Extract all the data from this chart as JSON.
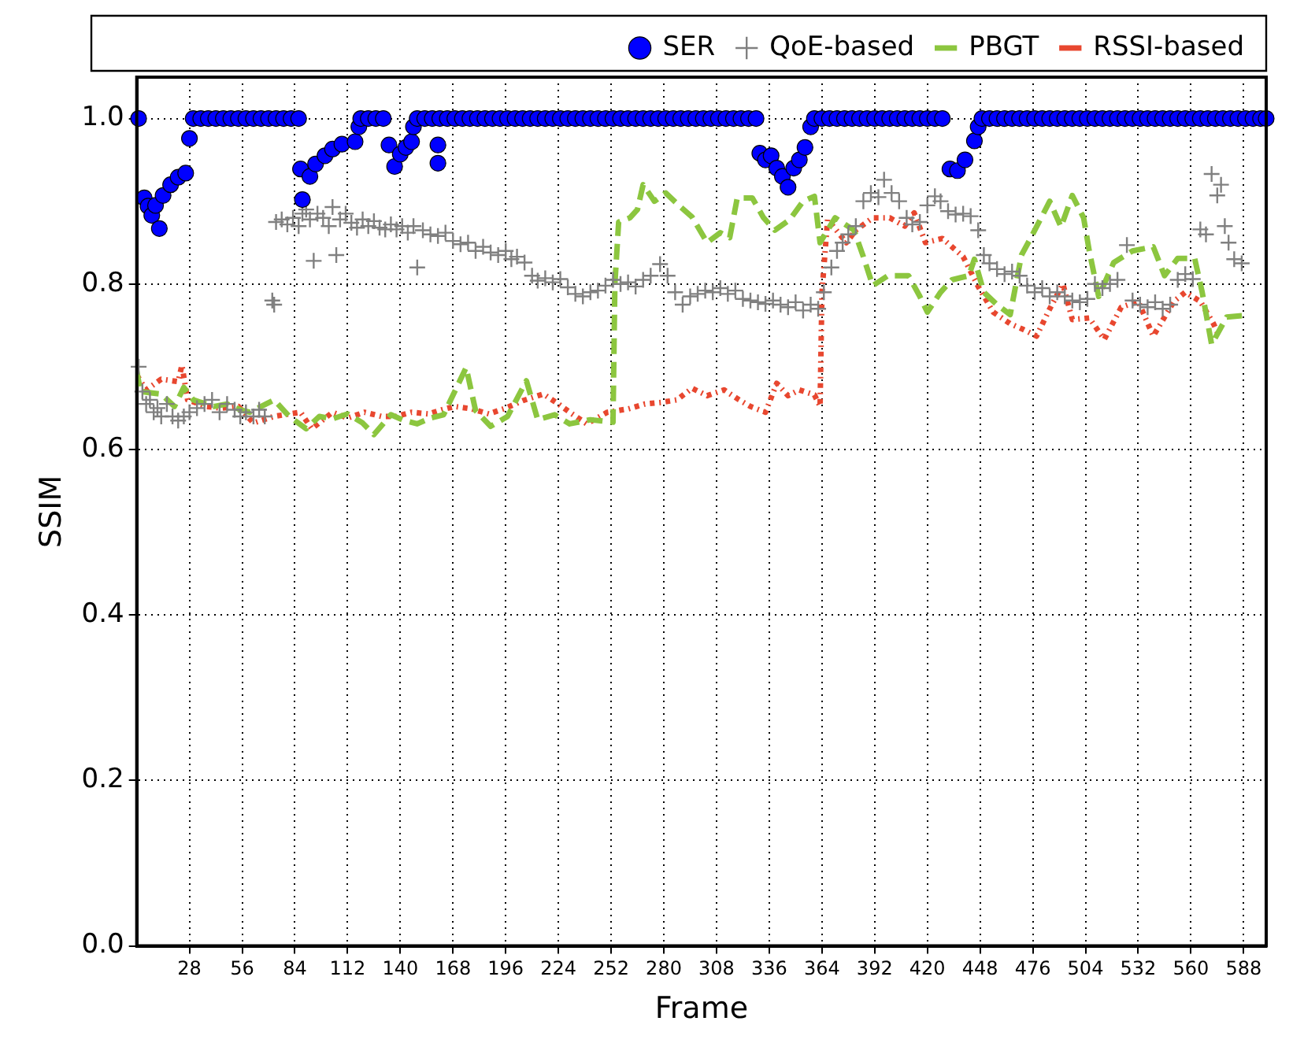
{
  "chart_data": {
    "type": "scatter",
    "xlabel": "Frame",
    "ylabel": "SSIM",
    "xlim": [
      0,
      600
    ],
    "ylim": [
      0,
      1.05
    ],
    "xticks": [
      28,
      56,
      84,
      112,
      140,
      168,
      196,
      224,
      252,
      280,
      308,
      336,
      364,
      392,
      420,
      448,
      476,
      504,
      532,
      560,
      588
    ],
    "yticks": [
      {
        "value": 0,
        "label": "0.0"
      },
      0.2,
      0.4,
      0.6,
      0.8,
      {
        "value": 1,
        "label": "1.0"
      }
    ],
    "grid": true,
    "legend": "top",
    "series": [
      {
        "name": "SER",
        "type": "scatter",
        "marker": "circle",
        "color": "#0000ff",
        "x": [
          1,
          4,
          6,
          8,
          10,
          12,
          14,
          18,
          22,
          26,
          28,
          30,
          34,
          38,
          42,
          46,
          50,
          54,
          58,
          62,
          66,
          70,
          74,
          78,
          82,
          86,
          87,
          88,
          92,
          95,
          100,
          104,
          109,
          116,
          118,
          119,
          123,
          127,
          131,
          134,
          137,
          140,
          143,
          146,
          147,
          149,
          153,
          157,
          160,
          160,
          161,
          165,
          169,
          173,
          177,
          181,
          185,
          189,
          193,
          197,
          201,
          205,
          209,
          213,
          217,
          221,
          225,
          229,
          233,
          237,
          241,
          245,
          249,
          253,
          257,
          261,
          265,
          269,
          273,
          277,
          281,
          285,
          289,
          293,
          297,
          301,
          305,
          309,
          313,
          317,
          321,
          325,
          329,
          331,
          334,
          337,
          340,
          343,
          346,
          349,
          352,
          355,
          358,
          360,
          364,
          368,
          372,
          376,
          380,
          384,
          388,
          392,
          396,
          400,
          404,
          408,
          412,
          416,
          420,
          424,
          428,
          432,
          436,
          440,
          445,
          447,
          449,
          453,
          457,
          461,
          465,
          469,
          473,
          477,
          481,
          485,
          489,
          493,
          497,
          501,
          505,
          509,
          513,
          517,
          521,
          525,
          529,
          533,
          537,
          541,
          545,
          549,
          553,
          557,
          561,
          565,
          569,
          573,
          577,
          581,
          585,
          589,
          593,
          597,
          600
        ],
        "values": [
          1,
          0.904,
          0.894,
          0.883,
          0.895,
          0.867,
          0.907,
          0.92,
          0.929,
          0.934,
          0.976,
          1,
          1,
          1,
          1,
          1,
          1,
          1,
          1,
          1,
          1,
          1,
          1,
          1,
          1,
          1,
          0.939,
          0.902,
          0.93,
          0.945,
          0.955,
          0.963,
          0.969,
          0.972,
          0.99,
          1,
          1,
          1,
          1,
          0.968,
          0.942,
          0.957,
          0.965,
          0.972,
          0.99,
          1,
          1,
          1,
          0.968,
          0.946,
          1,
          1,
          1,
          1,
          1,
          1,
          1,
          1,
          1,
          1,
          1,
          1,
          1,
          1,
          1,
          1,
          1,
          1,
          1,
          1,
          1,
          1,
          1,
          1,
          1,
          1,
          1,
          1,
          1,
          1,
          1,
          1,
          1,
          1,
          1,
          1,
          1,
          1,
          1,
          1,
          1,
          1,
          1,
          0.958,
          0.95,
          0.955,
          0.94,
          0.93,
          0.917,
          0.94,
          0.95,
          0.965,
          0.99,
          1,
          1,
          1,
          1,
          1,
          1,
          1,
          1,
          1,
          1,
          1,
          1,
          1,
          1,
          1,
          1,
          1,
          1,
          0.939,
          0.937,
          0.95,
          0.973,
          0.99,
          1,
          1,
          1,
          1,
          1,
          1,
          1,
          1,
          1,
          1,
          1,
          1,
          1,
          1,
          1,
          1,
          1,
          1,
          1,
          1,
          1,
          1,
          1,
          1,
          1,
          1,
          1,
          1,
          1,
          1,
          1,
          1,
          1,
          1,
          1,
          1,
          1,
          1,
          1
        ]
      },
      {
        "name": "QoE-based",
        "type": "scatter",
        "marker": "cross",
        "color": "#808080",
        "x": [
          1,
          3,
          5,
          7,
          9,
          11,
          13,
          16,
          19,
          22,
          25,
          28,
          32,
          36,
          40,
          44,
          48,
          52,
          55,
          58,
          62,
          65,
          68,
          72,
          73,
          74,
          77,
          80,
          83,
          86,
          88,
          90,
          92,
          94,
          96,
          99,
          102,
          104,
          106,
          108,
          111,
          114,
          117,
          120,
          123,
          126,
          129,
          132,
          135,
          138,
          141,
          144,
          147,
          149,
          152,
          156,
          160,
          164,
          168,
          172,
          176,
          180,
          184,
          188,
          192,
          196,
          199,
          202,
          206,
          210,
          213,
          217,
          221,
          225,
          229,
          233,
          237,
          241,
          245,
          249,
          253,
          257,
          261,
          265,
          269,
          273,
          278,
          282,
          286,
          290,
          294,
          298,
          302,
          306,
          310,
          314,
          318,
          322,
          326,
          330,
          334,
          338,
          342,
          346,
          350,
          354,
          358,
          362,
          365,
          369,
          372,
          375,
          378,
          382,
          386,
          390,
          394,
          397,
          401,
          405,
          409,
          412,
          416,
          420,
          424,
          427,
          431,
          435,
          439,
          443,
          447,
          450,
          453,
          457,
          461,
          465,
          469,
          473,
          477,
          481,
          485,
          489,
          493,
          497,
          501,
          505,
          509,
          513,
          517,
          521,
          526,
          529,
          533,
          537,
          541,
          545,
          549,
          553,
          557,
          561,
          565,
          568,
          571,
          574,
          576,
          578,
          580,
          583,
          587
        ],
        "values": [
          0.7,
          0.67,
          0.655,
          0.66,
          0.645,
          0.65,
          0.64,
          0.655,
          0.64,
          0.635,
          0.64,
          0.645,
          0.65,
          0.655,
          0.66,
          0.645,
          0.655,
          0.648,
          0.64,
          0.645,
          0.64,
          0.648,
          0.64,
          0.78,
          0.775,
          0.875,
          0.878,
          0.872,
          0.88,
          0.87,
          0.885,
          0.89,
          0.878,
          0.828,
          0.885,
          0.88,
          0.87,
          0.893,
          0.835,
          0.878,
          0.885,
          0.874,
          0.868,
          0.878,
          0.87,
          0.876,
          0.868,
          0.866,
          0.872,
          0.866,
          0.87,
          0.862,
          0.87,
          0.82,
          0.865,
          0.86,
          0.858,
          0.862,
          0.852,
          0.848,
          0.85,
          0.84,
          0.845,
          0.838,
          0.835,
          0.84,
          0.83,
          0.833,
          0.826,
          0.81,
          0.804,
          0.807,
          0.802,
          0.806,
          0.796,
          0.788,
          0.785,
          0.79,
          0.792,
          0.798,
          0.805,
          0.8,
          0.802,
          0.797,
          0.805,
          0.81,
          0.824,
          0.81,
          0.79,
          0.775,
          0.785,
          0.788,
          0.792,
          0.79,
          0.795,
          0.788,
          0.792,
          0.782,
          0.78,
          0.778,
          0.776,
          0.78,
          0.775,
          0.772,
          0.778,
          0.768,
          0.775,
          0.77,
          0.79,
          0.82,
          0.84,
          0.85,
          0.86,
          0.87,
          0.9,
          0.91,
          0.905,
          0.926,
          0.91,
          0.9,
          0.88,
          0.872,
          0.875,
          0.895,
          0.906,
          0.9,
          0.888,
          0.884,
          0.885,
          0.882,
          0.865,
          0.835,
          0.825,
          0.818,
          0.812,
          0.815,
          0.81,
          0.798,
          0.79,
          0.795,
          0.785,
          0.79,
          0.785,
          0.78,
          0.778,
          0.782,
          0.8,
          0.795,
          0.8,
          0.805,
          0.847,
          0.78,
          0.775,
          0.772,
          0.778,
          0.77,
          0.775,
          0.805,
          0.812,
          0.806,
          0.866,
          0.86,
          0.933,
          0.907,
          0.92,
          0.87,
          0.85,
          0.83,
          0.825
        ]
      },
      {
        "name": "PBGT",
        "type": "line",
        "marker": "none",
        "line_style": "dashed",
        "color": "#8cc63f",
        "x": [
          0,
          2,
          13,
          20,
          25,
          30,
          41,
          48,
          55,
          60,
          73,
          81,
          90,
          97,
          104,
          112,
          120,
          126,
          135,
          142,
          149,
          156,
          163,
          175,
          180,
          188,
          197,
          207,
          213,
          222,
          230,
          241,
          253,
          254,
          256,
          262,
          266,
          269,
          275,
          281,
          288,
          295,
          303,
          310,
          315,
          319,
          327,
          333,
          339,
          347,
          354,
          360,
          363,
          371,
          381,
          386,
          391,
          399,
          410,
          416,
          420,
          427,
          433,
          442,
          445,
          450,
          457,
          464,
          470,
          475,
          485,
          491,
          497,
          503,
          506,
          511,
          519,
          529,
          540,
          546,
          553,
          562,
          566,
          571,
          579,
          588
        ],
        "values": [
          0.695,
          0.67,
          0.667,
          0.652,
          0.675,
          0.66,
          0.652,
          0.655,
          0.648,
          0.645,
          0.66,
          0.64,
          0.625,
          0.64,
          0.637,
          0.643,
          0.632,
          0.618,
          0.642,
          0.635,
          0.631,
          0.638,
          0.642,
          0.699,
          0.647,
          0.628,
          0.64,
          0.683,
          0.636,
          0.642,
          0.631,
          0.636,
          0.633,
          0.8,
          0.875,
          0.88,
          0.89,
          0.92,
          0.9,
          0.91,
          0.895,
          0.881,
          0.85,
          0.862,
          0.856,
          0.904,
          0.904,
          0.88,
          0.865,
          0.878,
          0.9,
          0.906,
          0.85,
          0.88,
          0.865,
          0.833,
          0.798,
          0.81,
          0.81,
          0.785,
          0.766,
          0.79,
          0.805,
          0.81,
          0.83,
          0.79,
          0.775,
          0.763,
          0.835,
          0.856,
          0.9,
          0.869,
          0.907,
          0.88,
          0.84,
          0.785,
          0.826,
          0.84,
          0.845,
          0.81,
          0.831,
          0.831,
          0.79,
          0.727,
          0.76,
          0.762
        ]
      },
      {
        "name": "RSSI-based",
        "type": "line",
        "marker": "none",
        "line_style": "dotted",
        "color": "#e8472f",
        "x": [
          0,
          5,
          13,
          22,
          24,
          27,
          37,
          45,
          54,
          62,
          73,
          87,
          93,
          104,
          112,
          121,
          130,
          138,
          146,
          155,
          162,
          169,
          178,
          187,
          196,
          205,
          216,
          224,
          230,
          239,
          250,
          261,
          270,
          279,
          287,
          295,
          303,
          312,
          320,
          326,
          334,
          340,
          346,
          352,
          360,
          363,
          364,
          367,
          377,
          382,
          391,
          400,
          408,
          413,
          419,
          428,
          439,
          447,
          455,
          464,
          471,
          478,
          485,
          492,
          497,
          506,
          514,
          523,
          532,
          540,
          546,
          551,
          557,
          565,
          572,
          575
        ],
        "values": [
          0.69,
          0.672,
          0.685,
          0.682,
          0.702,
          0.66,
          0.652,
          0.65,
          0.652,
          0.632,
          0.64,
          0.645,
          0.625,
          0.645,
          0.638,
          0.645,
          0.64,
          0.64,
          0.645,
          0.643,
          0.648,
          0.652,
          0.649,
          0.643,
          0.65,
          0.659,
          0.667,
          0.655,
          0.645,
          0.631,
          0.645,
          0.649,
          0.655,
          0.657,
          0.66,
          0.674,
          0.665,
          0.672,
          0.66,
          0.652,
          0.645,
          0.68,
          0.665,
          0.672,
          0.666,
          0.652,
          0.79,
          0.878,
          0.85,
          0.865,
          0.88,
          0.88,
          0.87,
          0.886,
          0.85,
          0.855,
          0.833,
          0.797,
          0.766,
          0.752,
          0.745,
          0.737,
          0.77,
          0.8,
          0.757,
          0.759,
          0.733,
          0.772,
          0.779,
          0.737,
          0.76,
          0.779,
          0.79,
          0.779,
          0.752,
          0.737
        ]
      }
    ]
  }
}
